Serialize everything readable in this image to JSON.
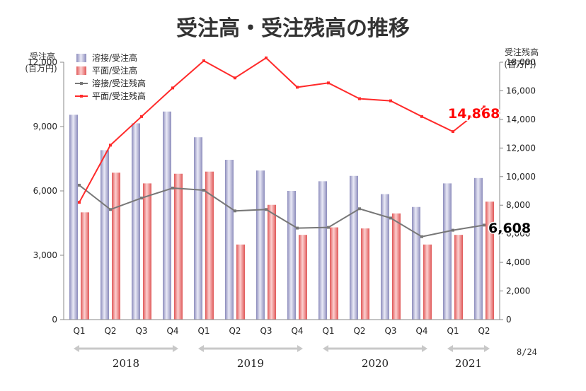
{
  "chart_data": {
    "type": "bar",
    "title": "受注高・受注残高の推移",
    "y_left_label": [
      "受注高",
      "(百万円)"
    ],
    "y_right_label": [
      "受注残高",
      "(百万円)"
    ],
    "y_left_lim": [
      0,
      12000
    ],
    "y_left_ticks": [
      "0",
      "3,000",
      "6,000",
      "9,000",
      "12,000"
    ],
    "y_left_tick_values": [
      0,
      3000,
      6000,
      9000,
      12000
    ],
    "y_right_lim": [
      0,
      18000
    ],
    "y_right_ticks": [
      "0",
      "2,000",
      "4,000",
      "6,000",
      "8,000",
      "10,000",
      "12,000",
      "14,000",
      "16,000",
      "18,000"
    ],
    "y_right_tick_values": [
      0,
      2000,
      4000,
      6000,
      8000,
      10000,
      12000,
      14000,
      16000,
      18000
    ],
    "categories": [
      "Q1",
      "Q2",
      "Q3",
      "Q4",
      "Q1",
      "Q2",
      "Q3",
      "Q4",
      "Q1",
      "Q2",
      "Q3",
      "Q4",
      "Q1",
      "Q2"
    ],
    "years": [
      {
        "label": "2018",
        "span": [
          0,
          3
        ]
      },
      {
        "label": "2019",
        "span": [
          4,
          7
        ]
      },
      {
        "label": "2020",
        "span": [
          8,
          11
        ]
      },
      {
        "label": "2021",
        "span": [
          12,
          13
        ]
      }
    ],
    "series": [
      {
        "name": "溶接/受注高",
        "kind": "bar",
        "axis": "left",
        "color": "#b6b6d8",
        "values": [
          9550,
          7900,
          9150,
          9700,
          8500,
          7450,
          6950,
          6000,
          6450,
          6700,
          5850,
          5250,
          6350,
          6600
        ]
      },
      {
        "name": "平面/受注高",
        "kind": "bar",
        "axis": "left",
        "color": "#f08a8a",
        "values": [
          5000,
          6850,
          6350,
          6800,
          6900,
          3500,
          5350,
          3950,
          4300,
          4250,
          4950,
          3500,
          3950,
          5500
        ]
      },
      {
        "name": "溶接/受注残高",
        "kind": "line",
        "axis": "right",
        "color": "#777777",
        "values": [
          9400,
          7700,
          8500,
          9200,
          9050,
          7600,
          7700,
          6400,
          6450,
          7750,
          7100,
          5800,
          6250,
          6608
        ]
      },
      {
        "name": "平面/受注残高",
        "kind": "line",
        "axis": "right",
        "color": "#ff2a2a",
        "values": [
          8200,
          12200,
          14200,
          16200,
          18100,
          16900,
          18300,
          16250,
          16550,
          15450,
          15300,
          14200,
          13150,
          14868
        ]
      }
    ],
    "annotations": [
      {
        "text": "14,868",
        "series": "平面/受注残高",
        "index": 13,
        "color": "#ff0000"
      },
      {
        "text": "6,608",
        "series": "溶接/受注残高",
        "index": 13,
        "color": "#000000"
      }
    ],
    "legend": "top-left",
    "grid": false
  },
  "footnote": "8/24"
}
